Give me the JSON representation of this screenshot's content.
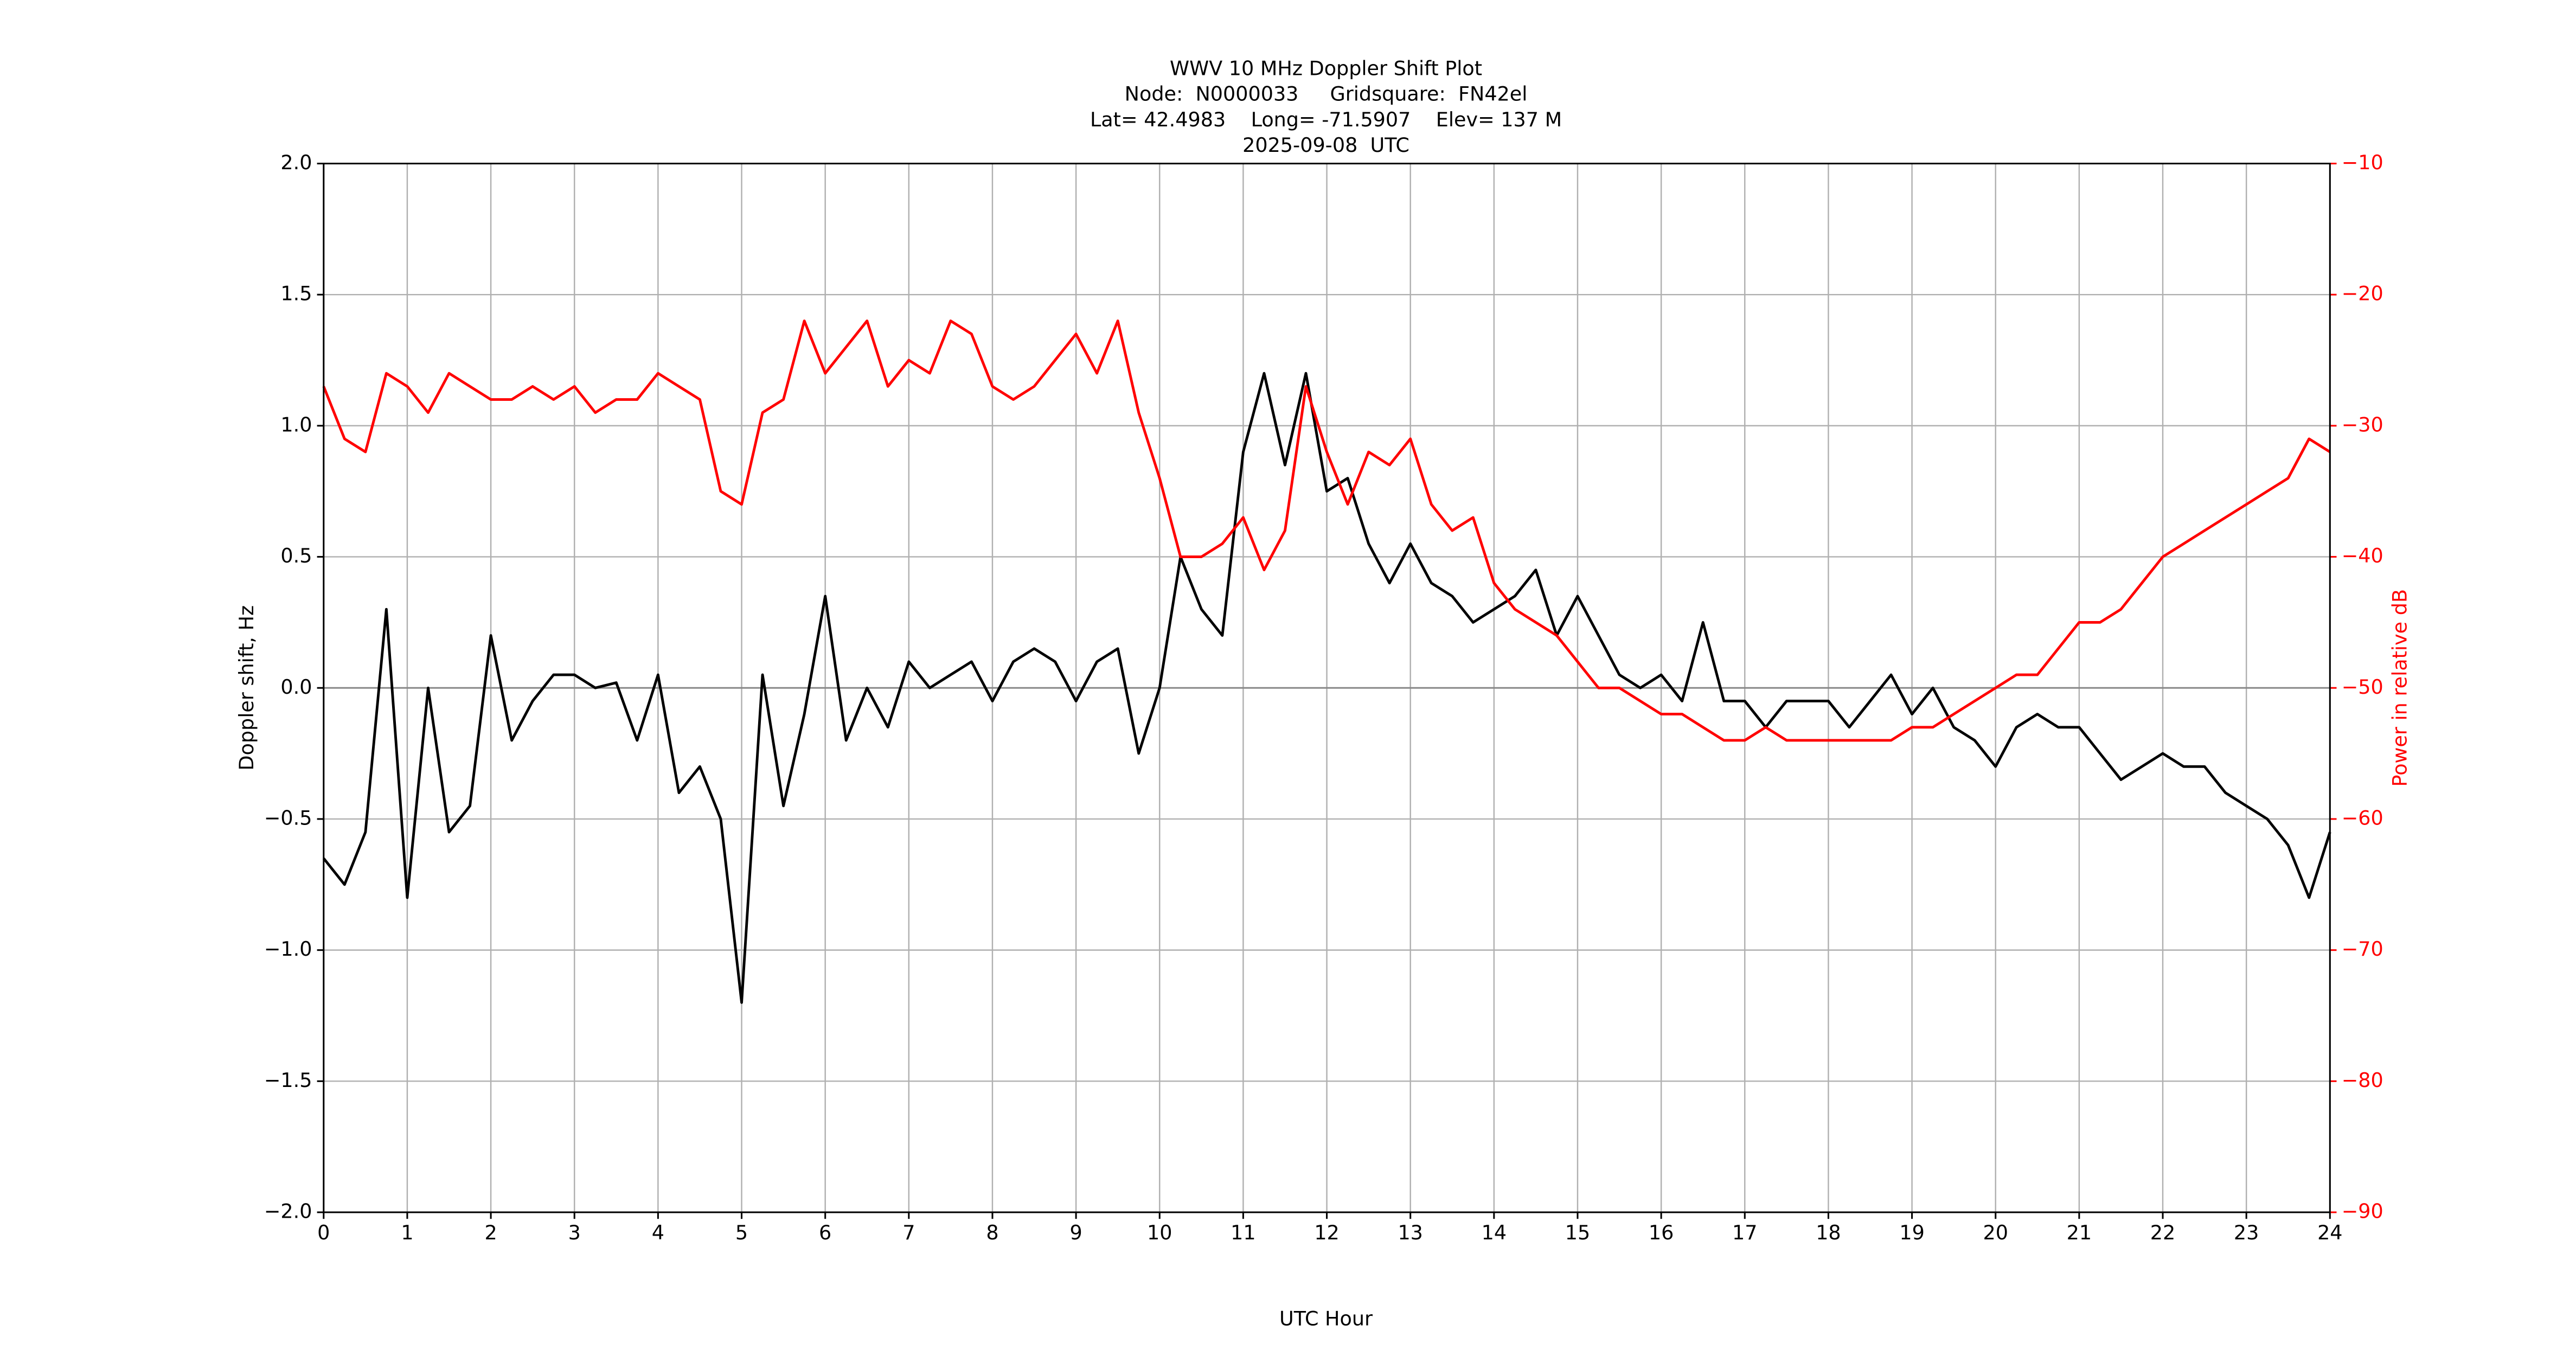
{
  "chart_data": {
    "type": "line",
    "title": [
      "WWV 10 MHz Doppler Shift Plot",
      "Node:  N0000033     Gridsquare:  FN42el",
      "Lat= 42.4983    Long= -71.5907    Elev= 137 M",
      "2025-09-08  UTC"
    ],
    "xlabel": "UTC Hour",
    "ylabel": "Doppler shift, Hz",
    "y2label": "Power in relative dB",
    "y2color": "#ff0000",
    "x": [
      0,
      0.25,
      0.5,
      0.75,
      1,
      1.25,
      1.5,
      1.75,
      2,
      2.25,
      2.5,
      2.75,
      3,
      3.25,
      3.5,
      3.75,
      4,
      4.25,
      4.5,
      4.75,
      5,
      5.25,
      5.5,
      5.75,
      6,
      6.25,
      6.5,
      6.75,
      7,
      7.25,
      7.5,
      7.75,
      8,
      8.25,
      8.5,
      8.75,
      9,
      9.25,
      9.5,
      9.75,
      10,
      10.25,
      10.5,
      10.75,
      11,
      11.25,
      11.5,
      11.75,
      12,
      12.25,
      12.5,
      12.75,
      13,
      13.25,
      13.5,
      13.75,
      14,
      14.25,
      14.5,
      14.75,
      15,
      15.25,
      15.5,
      15.75,
      16,
      16.25,
      16.5,
      16.75,
      17,
      17.25,
      17.5,
      17.75,
      18,
      18.25,
      18.5,
      18.75,
      19,
      19.25,
      19.5,
      19.75,
      20,
      20.25,
      20.5,
      20.75,
      21,
      21.25,
      21.5,
      21.75,
      22,
      22.25,
      22.5,
      22.75,
      23,
      23.25,
      23.5,
      23.75,
      24
    ],
    "series": [
      {
        "color": "#000000",
        "values": [
          -0.65,
          -0.75,
          -0.55,
          0.3,
          -0.8,
          0.0,
          -0.55,
          -0.45,
          0.2,
          -0.2,
          -0.05,
          0.05,
          0.05,
          0.0,
          0.02,
          -0.2,
          0.05,
          -0.4,
          -0.3,
          -0.5,
          -1.2,
          0.05,
          -0.45,
          -0.1,
          0.35,
          -0.2,
          0.0,
          -0.15,
          0.1,
          0.0,
          0.05,
          0.1,
          -0.05,
          0.1,
          0.15,
          0.1,
          -0.05,
          0.1,
          0.15,
          -0.25,
          0.0,
          0.5,
          0.3,
          0.2,
          0.9,
          1.2,
          0.85,
          1.2,
          0.75,
          0.8,
          0.55,
          0.4,
          0.55,
          0.4,
          0.35,
          0.25,
          0.3,
          0.35,
          0.45,
          0.2,
          0.35,
          0.2,
          0.05,
          0.0,
          0.05,
          -0.05,
          0.25,
          -0.05,
          -0.05,
          -0.15,
          -0.05,
          -0.05,
          -0.05,
          -0.15,
          -0.05,
          0.05,
          -0.1,
          0.0,
          -0.15,
          -0.2,
          -0.3,
          -0.15,
          -0.1,
          -0.15,
          -0.15,
          -0.25,
          -0.35,
          -0.3,
          -0.25,
          -0.3,
          -0.3,
          -0.4,
          -0.45,
          -0.5,
          -0.6,
          -0.8,
          -0.55
        ]
      },
      {
        "color": "#ff0000",
        "axis": "y2",
        "values": [
          -27,
          -31,
          -32,
          -26,
          -27,
          -29,
          -26,
          -27,
          -28,
          -28,
          -27,
          -28,
          -27,
          -29,
          -28,
          -28,
          -26,
          -27,
          -28,
          -35,
          -36,
          -29,
          -28,
          -22,
          -26,
          -24,
          -22,
          -27,
          -25,
          -26,
          -22,
          -23,
          -27,
          -28,
          -27,
          -25,
          -23,
          -26,
          -22,
          -29,
          -34,
          -40,
          -40,
          -39,
          -37,
          -41,
          -38,
          -27,
          -32,
          -36,
          -32,
          -33,
          -31,
          -36,
          -38,
          -37,
          -42,
          -44,
          -45,
          -46,
          -48,
          -50,
          -50,
          -51,
          -52,
          -52,
          -53,
          -54,
          -54,
          -53,
          -54,
          -54,
          -54,
          -54,
          -54,
          -54,
          -53,
          -53,
          -52,
          -51,
          -50,
          -49,
          -49,
          -47,
          -45,
          -45,
          -44,
          -42,
          -40,
          -39,
          -38,
          -37,
          -36,
          -35,
          -34,
          -31,
          -32
        ]
      }
    ],
    "xlim": [
      0,
      24
    ],
    "xticks": [
      0,
      1,
      2,
      3,
      4,
      5,
      6,
      7,
      8,
      9,
      10,
      11,
      12,
      13,
      14,
      15,
      16,
      17,
      18,
      19,
      20,
      21,
      22,
      23,
      24
    ],
    "ylim": [
      -2,
      2
    ],
    "yticks": [
      {
        "value": -2,
        "label": "−2.0"
      },
      {
        "value": -1.5,
        "label": "−1.5"
      },
      {
        "value": -1,
        "label": "−1.0"
      },
      {
        "value": -0.5,
        "label": "−0.5"
      },
      {
        "value": 0,
        "label": "0.0"
      },
      {
        "value": 0.5,
        "label": "0.5"
      },
      {
        "value": 1,
        "label": "1.0"
      },
      {
        "value": 1.5,
        "label": "1.5"
      },
      {
        "value": 2,
        "label": "2.0"
      }
    ],
    "y2lim": [
      -90,
      -10
    ],
    "y2ticks": [
      {
        "value": -90,
        "label": "−90"
      },
      {
        "value": -80,
        "label": "−80"
      },
      {
        "value": -70,
        "label": "−70"
      },
      {
        "value": -60,
        "label": "−60"
      },
      {
        "value": -50,
        "label": "−50"
      },
      {
        "value": -40,
        "label": "−40"
      },
      {
        "value": -30,
        "label": "−30"
      },
      {
        "value": -20,
        "label": "−20"
      },
      {
        "value": -10,
        "label": "−10"
      }
    ],
    "grid": true
  }
}
